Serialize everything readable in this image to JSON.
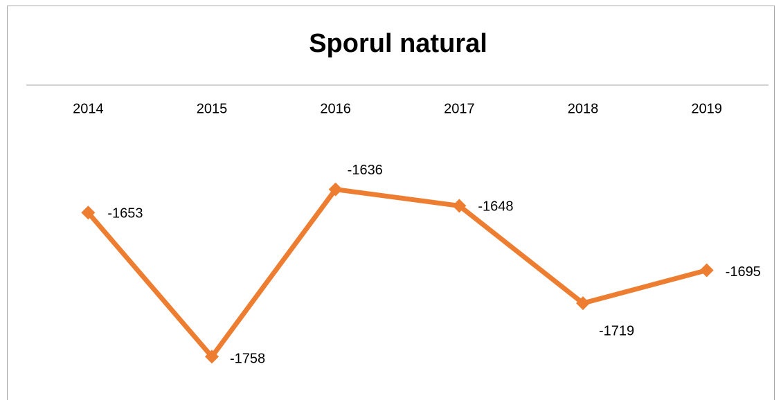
{
  "chart_data": {
    "type": "line",
    "title": "Sporul natural",
    "categories": [
      "2014",
      "2015",
      "2016",
      "2017",
      "2018",
      "2019"
    ],
    "values": [
      -1653,
      -1758,
      -1636,
      -1648,
      -1719,
      -1695
    ],
    "color": "#ed7d31",
    "ylim": [
      -1780,
      -1560
    ]
  }
}
